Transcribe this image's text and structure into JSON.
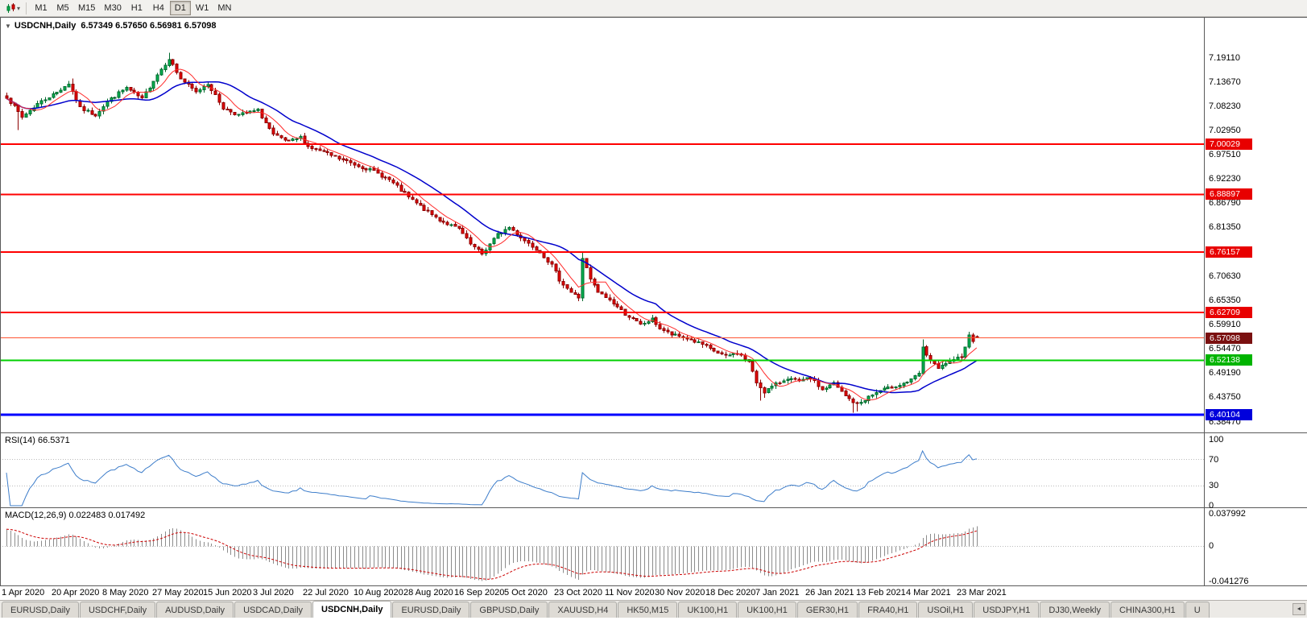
{
  "toolbar": {
    "dropdown_icon": "▾",
    "periods": [
      {
        "label": "M1",
        "active": false
      },
      {
        "label": "M5",
        "active": false
      },
      {
        "label": "M15",
        "active": false
      },
      {
        "label": "M30",
        "active": false
      },
      {
        "label": "H1",
        "active": false
      },
      {
        "label": "H4",
        "active": false
      },
      {
        "label": "D1",
        "active": true
      },
      {
        "label": "W1",
        "active": false
      },
      {
        "label": "MN",
        "active": false
      }
    ]
  },
  "chart_header": {
    "collapse_icon": "▼",
    "title": "USDCNH,Daily",
    "open": "6.57349",
    "high": "6.57650",
    "low": "6.56981",
    "close": "6.57098",
    "ohlc": "6.57349 6.57650 6.56981 6.57098"
  },
  "price_axis": {
    "labels": [
      "7.19110",
      "7.13670",
      "7.08230",
      "7.02950",
      "6.97510",
      "6.92230",
      "6.86790",
      "6.81350",
      "6.76070",
      "6.70630",
      "6.65350",
      "6.59910",
      "6.54470",
      "6.49190",
      "6.43750",
      "6.38470"
    ]
  },
  "time_axis": {
    "labels": [
      "1 Apr 2020",
      "20 Apr 2020",
      "8 May 2020",
      "27 May 2020",
      "15 Jun 2020",
      "3 Jul 2020",
      "22 Jul 2020",
      "10 Aug 2020",
      "28 Aug 2020",
      "16 Sep 2020",
      "5 Oct 2020",
      "23 Oct 2020",
      "11 Nov 2020",
      "30 Nov 2020",
      "18 Dec 2020",
      "7 Jan 2021",
      "26 Jan 2021",
      "13 Feb 2021",
      "4 Mar 2021",
      "23 Mar 2021"
    ],
    "candle_indices": [
      0,
      13,
      26,
      39,
      52,
      65,
      78,
      91,
      104,
      117,
      130,
      143,
      156,
      169,
      182,
      195,
      208,
      221,
      234,
      247
    ]
  },
  "indicators": {
    "rsi": {
      "label": "RSI(14) 66.5371",
      "period": 14,
      "value": 66.5371,
      "scale_labels": [
        "100",
        "70",
        "30",
        "0"
      ],
      "scale_values": [
        100,
        70,
        30,
        0
      ],
      "levels": [
        70,
        30
      ],
      "color": "#3d7dca"
    },
    "macd": {
      "label": "MACD(12,26,9) 0.022483 0.017492",
      "main": 0.022483,
      "signal": 0.017492,
      "scale_labels": [
        "0.037992",
        "0",
        "-0.041276"
      ],
      "scale_max": 0.037992,
      "scale_min": -0.041276,
      "hist_color": "#8c8c8c",
      "signal_color": "#cc0000"
    }
  },
  "chart_data": {
    "type": "candlestick",
    "symbol": "USDCNH",
    "period": "Daily",
    "num_candles": 252,
    "price_at_top_label": 7.1911,
    "price_at_bottom_label": 6.3847,
    "last_candle": {
      "open": 6.57349,
      "high": 6.5765,
      "low": 6.56981,
      "close": 6.57098
    },
    "anchors": [
      [
        0,
        7.105
      ],
      [
        4,
        7.06
      ],
      [
        8,
        7.09
      ],
      [
        13,
        7.115
      ],
      [
        16,
        7.135
      ],
      [
        19,
        7.08
      ],
      [
        23,
        7.065
      ],
      [
        26,
        7.095
      ],
      [
        31,
        7.125
      ],
      [
        35,
        7.1
      ],
      [
        39,
        7.155
      ],
      [
        42,
        7.19
      ],
      [
        45,
        7.145
      ],
      [
        49,
        7.115
      ],
      [
        52,
        7.135
      ],
      [
        56,
        7.08
      ],
      [
        60,
        7.065
      ],
      [
        65,
        7.075
      ],
      [
        69,
        7.02
      ],
      [
        73,
        7.005
      ],
      [
        76,
        7.015
      ],
      [
        78,
        6.995
      ],
      [
        82,
        6.982
      ],
      [
        86,
        6.968
      ],
      [
        91,
        6.952
      ],
      [
        95,
        6.94
      ],
      [
        99,
        6.921
      ],
      [
        104,
        6.882
      ],
      [
        108,
        6.856
      ],
      [
        112,
        6.832
      ],
      [
        117,
        6.812
      ],
      [
        120,
        6.778
      ],
      [
        123,
        6.757
      ],
      [
        127,
        6.8
      ],
      [
        130,
        6.816
      ],
      [
        134,
        6.787
      ],
      [
        138,
        6.762
      ],
      [
        141,
        6.732
      ],
      [
        143,
        6.7
      ],
      [
        146,
        6.672
      ],
      [
        148,
        6.66
      ],
      [
        149,
        6.748
      ],
      [
        151,
        6.7
      ],
      [
        153,
        6.672
      ],
      [
        156,
        6.655
      ],
      [
        160,
        6.624
      ],
      [
        164,
        6.6
      ],
      [
        167,
        6.612
      ],
      [
        169,
        6.592
      ],
      [
        172,
        6.578
      ],
      [
        176,
        6.57
      ],
      [
        180,
        6.556
      ],
      [
        182,
        6.546
      ],
      [
        186,
        6.53
      ],
      [
        189,
        6.538
      ],
      [
        192,
        6.518
      ],
      [
        194,
        6.472
      ],
      [
        196,
        6.452
      ],
      [
        199,
        6.468
      ],
      [
        202,
        6.482
      ],
      [
        205,
        6.474
      ],
      [
        208,
        6.482
      ],
      [
        211,
        6.456
      ],
      [
        214,
        6.47
      ],
      [
        217,
        6.442
      ],
      [
        220,
        6.423
      ],
      [
        223,
        6.44
      ],
      [
        226,
        6.454
      ],
      [
        229,
        6.462
      ],
      [
        232,
        6.47
      ],
      [
        234,
        6.477
      ],
      [
        236,
        6.492
      ],
      [
        237,
        6.548
      ],
      [
        239,
        6.52
      ],
      [
        241,
        6.502
      ],
      [
        243,
        6.515
      ],
      [
        245,
        6.52
      ],
      [
        247,
        6.532
      ],
      [
        248,
        6.553
      ],
      [
        249,
        6.576
      ],
      [
        250,
        6.566
      ],
      [
        251,
        6.57098
      ]
    ],
    "spikes": [
      {
        "i": 3,
        "low": 7.031
      },
      {
        "i": 17,
        "high": 7.146
      },
      {
        "i": 42,
        "high": 7.203
      },
      {
        "i": 149,
        "high": 6.7618,
        "low": 6.652
      },
      {
        "i": 195,
        "low": 6.432
      },
      {
        "i": 196,
        "low": 6.438
      },
      {
        "i": 219,
        "low": 6.4055
      },
      {
        "i": 220,
        "low": 6.408
      },
      {
        "i": 237,
        "high": 6.568
      },
      {
        "i": 249,
        "high": 6.5845
      }
    ],
    "moving_averages": [
      {
        "period": 20,
        "color": "#0000cc"
      },
      {
        "period": 7,
        "color": "#ff2a2a"
      }
    ],
    "h_lines": [
      {
        "price": 7.00029,
        "label": "7.00029",
        "color": "#ff0000",
        "width": 2,
        "tag_bg": "#e80000",
        "tag_fg": "#ffffff"
      },
      {
        "price": 6.88897,
        "label": "6.88897",
        "color": "#ff0000",
        "width": 2,
        "tag_bg": "#e80000",
        "tag_fg": "#ffffff"
      },
      {
        "price": 6.76157,
        "label": "6.76157",
        "color": "#ff0000",
        "width": 2,
        "tag_bg": "#e80000",
        "tag_fg": "#ffffff"
      },
      {
        "price": 6.62709,
        "label": "6.62709",
        "color": "#ff0000",
        "width": 2,
        "tag_bg": "#e80000",
        "tag_fg": "#ffffff"
      },
      {
        "price": 6.52138,
        "label": "6.52138",
        "color": "#00cf00",
        "width": 2,
        "tag_bg": "#00b400",
        "tag_fg": "#ffffff"
      },
      {
        "price": 6.40104,
        "label": "6.40104",
        "color": "#0000ff",
        "width": 3,
        "tag_bg": "#0000dc",
        "tag_fg": "#ffffff"
      }
    ],
    "bid_line": {
      "price": 6.57098,
      "label": "6.57098",
      "color": "#ff5533",
      "width": 1,
      "tag_bg": "#7a1010",
      "tag_fg": "#ffffff"
    },
    "candle_colors": {
      "up_fill": "#00b050",
      "up_stroke": "#006a2e",
      "down_fill": "#e60000",
      "down_stroke": "#8c0000"
    }
  },
  "tabs": [
    {
      "label": "EURUSD,Daily",
      "active": false
    },
    {
      "label": "USDCHF,Daily",
      "active": false
    },
    {
      "label": "AUDUSD,Daily",
      "active": false
    },
    {
      "label": "USDCAD,Daily",
      "active": false
    },
    {
      "label": "USDCNH,Daily",
      "active": true
    },
    {
      "label": "EURUSD,Daily",
      "active": false
    },
    {
      "label": "GBPUSD,Daily",
      "active": false
    },
    {
      "label": "XAUUSD,H4",
      "active": false
    },
    {
      "label": "HK50,M15",
      "active": false
    },
    {
      "label": "UK100,H1",
      "active": false
    },
    {
      "label": "UK100,H1",
      "active": false
    },
    {
      "label": "GER30,H1",
      "active": false
    },
    {
      "label": "FRA40,H1",
      "active": false
    },
    {
      "label": "USOil,H1",
      "active": false
    },
    {
      "label": "USDJPY,H1",
      "active": false
    },
    {
      "label": "DJ30,Weekly",
      "active": false
    },
    {
      "label": "CHINA300,H1",
      "active": false
    },
    {
      "label": "U",
      "active": false
    }
  ],
  "misc": {
    "tab_scroll_icon": "◄"
  }
}
